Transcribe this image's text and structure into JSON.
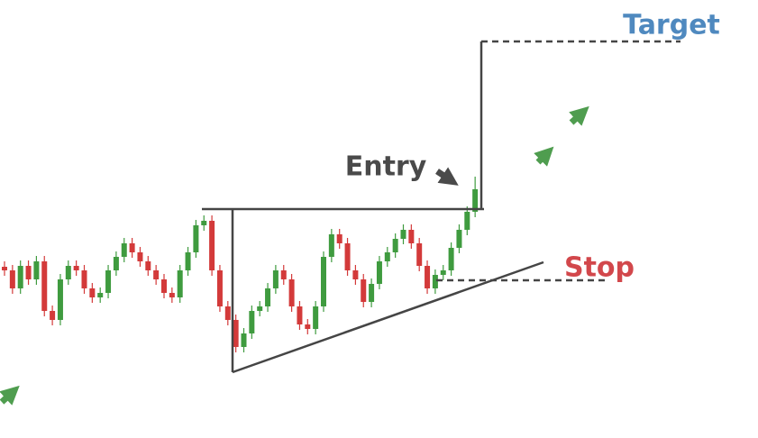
{
  "chart_data": {
    "type": "candlestick",
    "ylim": [
      0,
      486
    ],
    "up_color": "#3f9b3f",
    "down_color": "#d33a3a",
    "line_color": "#454545",
    "categories": [
      null,
      null,
      null,
      null,
      null,
      null,
      null,
      null,
      null,
      null,
      null,
      null,
      null,
      null,
      null,
      null,
      null,
      null,
      null,
      null,
      null,
      null,
      null,
      null,
      null,
      null,
      null,
      null,
      null,
      null,
      null,
      null,
      null,
      null,
      null,
      null,
      null,
      null,
      null,
      null,
      null,
      null,
      null,
      null,
      null,
      null,
      null,
      null,
      null,
      null,
      null,
      null,
      null,
      null,
      null,
      null,
      null,
      null,
      null,
      null
    ],
    "open": [
      190,
      186,
      166,
      191,
      176,
      196,
      141,
      131,
      176,
      191,
      186,
      166,
      156,
      161,
      186,
      201,
      216,
      206,
      196,
      186,
      176,
      161,
      156,
      186,
      206,
      236,
      241,
      186,
      146,
      131,
      101,
      116,
      141,
      146,
      166,
      186,
      176,
      146,
      126,
      121,
      146,
      201,
      226,
      216,
      186,
      176,
      151,
      171,
      196,
      206,
      221,
      231,
      216,
      191,
      166,
      181,
      186,
      211,
      231,
      251
    ],
    "high": [
      196,
      192,
      197,
      197,
      202,
      202,
      147,
      182,
      197,
      197,
      192,
      172,
      167,
      192,
      207,
      222,
      222,
      212,
      202,
      192,
      182,
      167,
      192,
      212,
      242,
      247,
      247,
      192,
      152,
      137,
      122,
      147,
      152,
      172,
      192,
      192,
      182,
      152,
      132,
      152,
      207,
      232,
      232,
      222,
      192,
      182,
      177,
      202,
      212,
      227,
      237,
      237,
      222,
      197,
      187,
      192,
      217,
      237,
      257,
      290
    ],
    "low": [
      180,
      160,
      160,
      170,
      170,
      135,
      125,
      125,
      170,
      180,
      160,
      150,
      150,
      155,
      180,
      195,
      200,
      190,
      180,
      170,
      155,
      150,
      150,
      180,
      200,
      230,
      180,
      140,
      125,
      95,
      95,
      110,
      135,
      140,
      160,
      170,
      140,
      120,
      115,
      115,
      140,
      195,
      210,
      180,
      170,
      145,
      145,
      165,
      190,
      200,
      215,
      210,
      185,
      160,
      160,
      175,
      180,
      205,
      225,
      245
    ],
    "close": [
      186,
      166,
      191,
      176,
      196,
      141,
      131,
      176,
      191,
      186,
      166,
      156,
      161,
      186,
      201,
      216,
      206,
      196,
      186,
      176,
      161,
      156,
      186,
      206,
      236,
      241,
      186,
      146,
      131,
      101,
      116,
      141,
      146,
      166,
      186,
      176,
      146,
      126,
      121,
      146,
      201,
      226,
      216,
      186,
      176,
      151,
      171,
      196,
      206,
      221,
      231,
      216,
      191,
      166,
      181,
      186,
      211,
      231,
      251,
      276
    ],
    "resistance": 254,
    "support": [
      73,
      195
    ],
    "target": {
      "label": "Target",
      "value": 440,
      "color": "#4f89bf"
    },
    "entry": {
      "label": "Entry",
      "color": "#4a4a4a"
    },
    "stop": {
      "label": "Stop",
      "value": 175,
      "color": "#d2474b"
    }
  }
}
